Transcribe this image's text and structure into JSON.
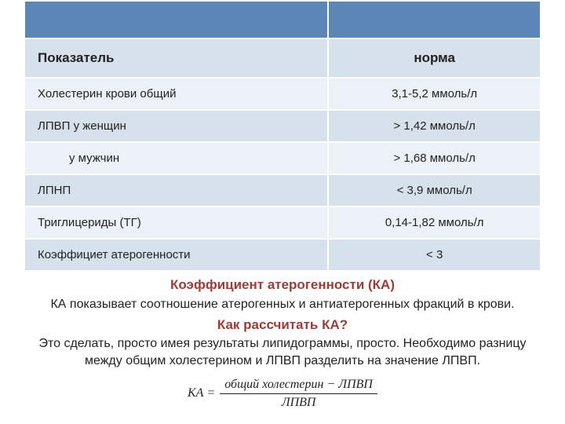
{
  "table": {
    "header_bg": "#5b86b6",
    "subheader_bg": "#d6e1ec",
    "row_odd_bg": "#ecf1f7",
    "row_even_bg": "#d6e1ec",
    "border_color": "#ffffff",
    "text_color": "#222222",
    "columns": {
      "left": "Показатель",
      "right": "норма"
    },
    "rows": [
      {
        "left": "Холестерин крови общий",
        "right": "3,1-5,2 ммоль/л",
        "indent": false
      },
      {
        "left": "ЛПВП у женщин",
        "right": "> 1,42 ммоль/л",
        "indent": false
      },
      {
        "left": "у мужчин",
        "right": "> 1,68 ммоль/л",
        "indent": true
      },
      {
        "left": "ЛПНП",
        "right": "< 3,9 ммоль/л",
        "indent": false
      },
      {
        "left": "Триглицериды (ТГ)",
        "right": "0,14-1,82 ммоль/л",
        "indent": false
      },
      {
        "left": "Коэффициет атерогенности",
        "right": "< 3",
        "indent": false
      }
    ]
  },
  "text": {
    "heading1": "Коэффициент атерогенности (КА)",
    "para1": "КА показывает соотношение атерогенных и антиатерогенных фракций в крови.",
    "heading2": "Как рассчитать КА?",
    "para2": "Это сделать, просто имея результаты липидограммы, просто. Необходимо разницу между общим холестерином и ЛПВП разделить на значение ЛПВП.",
    "heading_color": "#9a3d38"
  },
  "formula": {
    "lhs": "КА =",
    "numerator": "общий холестерин − ЛПВП",
    "denominator": "ЛПВП"
  }
}
